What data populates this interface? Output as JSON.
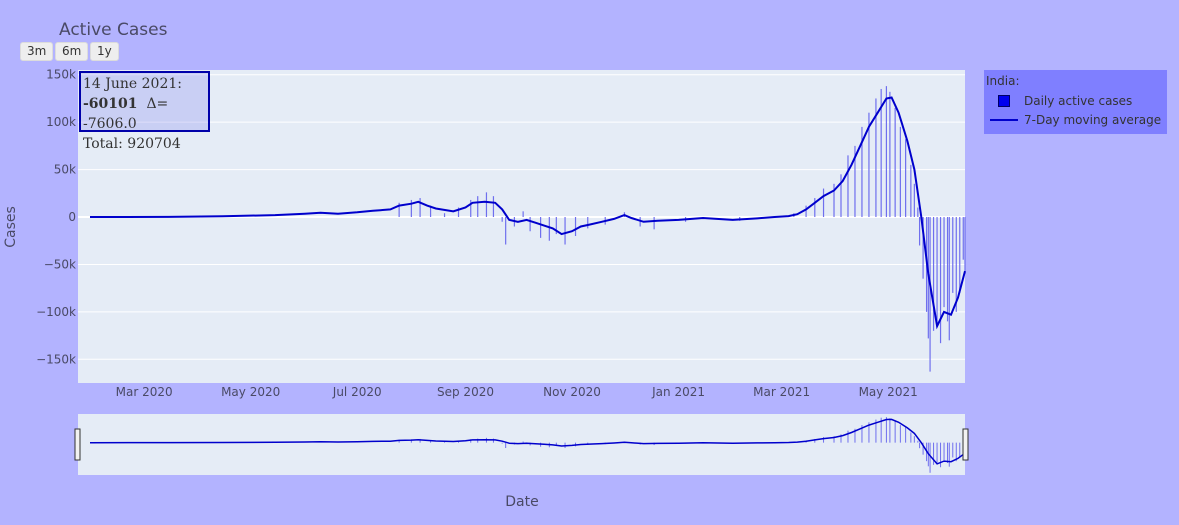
{
  "title": "Active Cases",
  "range_buttons": [
    "3m",
    "6m",
    "1y"
  ],
  "annotation": {
    "date": "14 June 2021:",
    "value": "-60101",
    "delta": "Δ= -7606.0",
    "total": "Total: 920704"
  },
  "legend": {
    "title": "India:",
    "items": [
      "Daily active cases",
      "7-Day moving average"
    ]
  },
  "colors": {
    "background": "#b3b3ff",
    "plot_bg": "#e5ecf6",
    "bars": "#6f6fee",
    "line": "#0000cc",
    "legend_bg": "#7f7fff"
  },
  "chart_data": {
    "type": "bar",
    "title": "Active Cases",
    "xlabel": "Date",
    "ylabel": "Cases",
    "x_start": "2020-01-30",
    "x_end": "2021-06-14",
    "ylim": [
      -175000,
      155000
    ],
    "yticks": [
      -150000,
      -100000,
      -50000,
      0,
      50000,
      100000,
      150000
    ],
    "ytick_labels": [
      "−150k",
      "−100k",
      "−50k",
      "0",
      "50k",
      "100k",
      "150k"
    ],
    "xtick_dates": [
      "2020-03-01",
      "2020-05-01",
      "2020-07-01",
      "2020-09-01",
      "2020-11-01",
      "2021-01-01",
      "2021-03-01",
      "2021-05-01"
    ],
    "xtick_labels": [
      "Mar 2020",
      "May 2020",
      "Jul 2020",
      "Sep 2020",
      "Nov 2020",
      "Jan 2021",
      "Mar 2021",
      "May 2021"
    ],
    "legend_position": "top-right",
    "series": [
      {
        "name": "7-Day moving average",
        "kind": "line",
        "points": [
          [
            "2020-01-30",
            0
          ],
          [
            "2020-03-15",
            100
          ],
          [
            "2020-04-15",
            800
          ],
          [
            "2020-05-15",
            2000
          ],
          [
            "2020-06-01",
            3500
          ],
          [
            "2020-06-10",
            4500
          ],
          [
            "2020-06-20",
            3500
          ],
          [
            "2020-07-01",
            5000
          ],
          [
            "2020-07-10",
            6500
          ],
          [
            "2020-07-20",
            8000
          ],
          [
            "2020-07-25",
            12000
          ],
          [
            "2020-08-01",
            14000
          ],
          [
            "2020-08-05",
            16000
          ],
          [
            "2020-08-10",
            12000
          ],
          [
            "2020-08-15",
            9000
          ],
          [
            "2020-08-25",
            6000
          ],
          [
            "2020-09-01",
            10000
          ],
          [
            "2020-09-05",
            15000
          ],
          [
            "2020-09-12",
            16000
          ],
          [
            "2020-09-18",
            15000
          ],
          [
            "2020-09-22",
            8000
          ],
          [
            "2020-09-26",
            -3000
          ],
          [
            "2020-10-01",
            -5000
          ],
          [
            "2020-10-06",
            -3000
          ],
          [
            "2020-10-11",
            -6000
          ],
          [
            "2020-10-16",
            -9000
          ],
          [
            "2020-10-21",
            -12000
          ],
          [
            "2020-10-26",
            -18000
          ],
          [
            "2020-11-01",
            -15000
          ],
          [
            "2020-11-06",
            -10000
          ],
          [
            "2020-11-11",
            -8000
          ],
          [
            "2020-11-18",
            -5000
          ],
          [
            "2020-11-25",
            -2000
          ],
          [
            "2020-12-01",
            2000
          ],
          [
            "2020-12-05",
            -1000
          ],
          [
            "2020-12-12",
            -5000
          ],
          [
            "2020-12-20",
            -4000
          ],
          [
            "2021-01-01",
            -3000
          ],
          [
            "2021-01-15",
            -1000
          ],
          [
            "2021-02-01",
            -3000
          ],
          [
            "2021-02-15",
            -1500
          ],
          [
            "2021-02-25",
            0
          ],
          [
            "2021-03-05",
            1000
          ],
          [
            "2021-03-10",
            3000
          ],
          [
            "2021-03-15",
            8000
          ],
          [
            "2021-03-20",
            15000
          ],
          [
            "2021-03-25",
            22000
          ],
          [
            "2021-03-31",
            28000
          ],
          [
            "2021-04-05",
            38000
          ],
          [
            "2021-04-10",
            55000
          ],
          [
            "2021-04-15",
            75000
          ],
          [
            "2021-04-20",
            95000
          ],
          [
            "2021-04-25",
            110000
          ],
          [
            "2021-04-30",
            125000
          ],
          [
            "2021-05-03",
            126000
          ],
          [
            "2021-05-07",
            110000
          ],
          [
            "2021-05-12",
            80000
          ],
          [
            "2021-05-16",
            50000
          ],
          [
            "2021-05-20",
            0
          ],
          [
            "2021-05-24",
            -60000
          ],
          [
            "2021-05-29",
            -115000
          ],
          [
            "2021-06-02",
            -100000
          ],
          [
            "2021-06-06",
            -103000
          ],
          [
            "2021-06-10",
            -85000
          ],
          [
            "2021-06-14",
            -57000
          ]
        ]
      },
      {
        "name": "Daily active cases",
        "kind": "bar",
        "points": [
          [
            "2020-07-25",
            15000
          ],
          [
            "2020-08-01",
            18000
          ],
          [
            "2020-08-06",
            20000
          ],
          [
            "2020-08-12",
            12000
          ],
          [
            "2020-08-20",
            4000
          ],
          [
            "2020-08-28",
            10000
          ],
          [
            "2020-09-04",
            18000
          ],
          [
            "2020-09-08",
            22000
          ],
          [
            "2020-09-13",
            26000
          ],
          [
            "2020-09-17",
            22000
          ],
          [
            "2020-09-22",
            -5000
          ],
          [
            "2020-09-24",
            -29000
          ],
          [
            "2020-09-29",
            -10000
          ],
          [
            "2020-10-04",
            6000
          ],
          [
            "2020-10-08",
            -15000
          ],
          [
            "2020-10-14",
            -22000
          ],
          [
            "2020-10-19",
            -25000
          ],
          [
            "2020-10-23",
            -18000
          ],
          [
            "2020-10-28",
            -29000
          ],
          [
            "2020-11-03",
            -20000
          ],
          [
            "2020-11-10",
            -12000
          ],
          [
            "2020-11-20",
            -8000
          ],
          [
            "2020-12-01",
            5000
          ],
          [
            "2020-12-10",
            -10000
          ],
          [
            "2020-12-18",
            -13000
          ],
          [
            "2021-01-05",
            -5000
          ],
          [
            "2021-02-05",
            -4000
          ],
          [
            "2021-03-08",
            4000
          ],
          [
            "2021-03-15",
            12000
          ],
          [
            "2021-03-20",
            20000
          ],
          [
            "2021-03-25",
            30000
          ],
          [
            "2021-03-31",
            35000
          ],
          [
            "2021-04-04",
            45000
          ],
          [
            "2021-04-08",
            65000
          ],
          [
            "2021-04-12",
            75000
          ],
          [
            "2021-04-16",
            95000
          ],
          [
            "2021-04-20",
            110000
          ],
          [
            "2021-04-24",
            125000
          ],
          [
            "2021-04-27",
            135000
          ],
          [
            "2021-04-30",
            138000
          ],
          [
            "2021-05-02",
            132000
          ],
          [
            "2021-05-05",
            115000
          ],
          [
            "2021-05-08",
            95000
          ],
          [
            "2021-05-11",
            82000
          ],
          [
            "2021-05-14",
            55000
          ],
          [
            "2021-05-16",
            35000
          ],
          [
            "2021-05-18",
            10000
          ],
          [
            "2021-05-19",
            -30000
          ],
          [
            "2021-05-21",
            -65000
          ],
          [
            "2021-05-23",
            -100000
          ],
          [
            "2021-05-24",
            -128000
          ],
          [
            "2021-05-25",
            -163000
          ],
          [
            "2021-05-27",
            -120000
          ],
          [
            "2021-05-29",
            -115000
          ],
          [
            "2021-05-31",
            -133000
          ],
          [
            "2021-06-02",
            -95000
          ],
          [
            "2021-06-04",
            -110000
          ],
          [
            "2021-06-05",
            -130000
          ],
          [
            "2021-06-07",
            -80000
          ],
          [
            "2021-06-09",
            -100000
          ],
          [
            "2021-06-11",
            -80000
          ],
          [
            "2021-06-13",
            -45000
          ],
          [
            "2021-06-14",
            -60101
          ]
        ]
      }
    ]
  }
}
